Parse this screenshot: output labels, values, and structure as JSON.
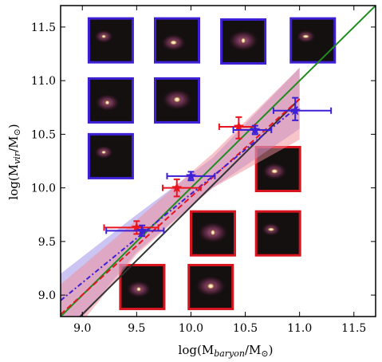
{
  "chart_data": {
    "type": "scatter",
    "title": "",
    "xlabel": {
      "main": "log(M",
      "sub": "baryon",
      "tail": "/M",
      "sun": "⊙",
      "close": ")"
    },
    "ylabel": {
      "main": "log(M",
      "sub": "vir",
      "tail": "/M",
      "sun": "⊙",
      "close": ")"
    },
    "xlim": [
      8.8,
      11.7
    ],
    "ylim": [
      8.8,
      11.7
    ],
    "xticks": [
      "9.0",
      "9.5",
      "10.0",
      "10.5",
      "11.0",
      "11.5"
    ],
    "yticks": [
      "9.0",
      "9.5",
      "10.0",
      "10.5",
      "11.0",
      "11.5"
    ],
    "grid": false,
    "colors": {
      "red": "#e8141e",
      "blue": "#3d1fd6",
      "green": "#1e8c1e",
      "black": "#333333",
      "red_band": "#f08a96",
      "blue_band": "#9a8ae6",
      "thumb_red": "#d8141e",
      "thumb_blue": "#3d1fd6"
    },
    "series": [
      {
        "color": "red",
        "marker": "star",
        "points": [
          {
            "x": 9.5,
            "y": 9.63,
            "xerr": [
              0.3,
              0.2
            ],
            "yerr": [
              0.06,
              0.06
            ]
          },
          {
            "x": 9.87,
            "y": 10.0,
            "xerr": [
              0.13,
              0.22
            ],
            "yerr": [
              0.08,
              0.08
            ]
          },
          {
            "x": 10.44,
            "y": 10.57,
            "xerr": [
              0.18,
              0.15
            ],
            "yerr": [
              0.11,
              0.09
            ]
          }
        ]
      },
      {
        "color": "blue",
        "marker": "star",
        "points": [
          {
            "x": 9.55,
            "y": 9.6,
            "xerr": [
              0.33,
              0.2
            ],
            "yerr": [
              0.05,
              0.05
            ]
          },
          {
            "x": 10.0,
            "y": 10.11,
            "xerr": [
              0.22,
              0.22
            ],
            "yerr": [
              0.04,
              0.04
            ]
          },
          {
            "x": 10.59,
            "y": 10.54,
            "xerr": [
              0.2,
              0.15
            ],
            "yerr": [
              0.04,
              0.04
            ]
          },
          {
            "x": 10.96,
            "y": 10.72,
            "xerr": [
              0.2,
              0.33
            ],
            "yerr": [
              0.09,
              0.12
            ]
          }
        ]
      }
    ],
    "lines": [
      {
        "style": "solid",
        "color": "green",
        "x": [
          8.8,
          11.7
        ],
        "y": [
          8.8,
          11.7
        ]
      },
      {
        "style": "solid",
        "color": "black",
        "x": [
          8.8,
          11.0
        ],
        "y": [
          8.62,
          10.83
        ]
      },
      {
        "style": "dashed",
        "color": "red",
        "x": [
          8.8,
          11.0
        ],
        "y": [
          8.82,
          10.83
        ]
      },
      {
        "style": "dotdash",
        "color": "blue",
        "x": [
          8.8,
          11.0
        ],
        "y": [
          8.95,
          10.77
        ]
      }
    ],
    "bands": [
      {
        "color": "blue_band",
        "x": [
          8.8,
          9.5,
          10.2,
          11.0
        ],
        "y_low": [
          8.55,
          9.4,
          10.0,
          10.55
        ],
        "y_high": [
          9.2,
          9.75,
          10.28,
          11.12
        ]
      },
      {
        "color": "red_band",
        "x": [
          8.8,
          9.5,
          10.2,
          11.0
        ],
        "y_low": [
          8.5,
          9.38,
          10.0,
          10.45
        ],
        "y_high": [
          9.1,
          9.7,
          10.32,
          11.12
        ]
      }
    ],
    "thumbnails": [
      {
        "border": "thumb_blue",
        "x0": 9.06,
        "y1": 11.58
      },
      {
        "border": "thumb_blue",
        "x0": 9.67,
        "y1": 11.58
      },
      {
        "border": "thumb_blue",
        "x0": 10.28,
        "y1": 11.57
      },
      {
        "border": "thumb_blue",
        "x0": 10.92,
        "y1": 11.58
      },
      {
        "border": "thumb_blue",
        "x0": 9.06,
        "y1": 11.02
      },
      {
        "border": "thumb_blue",
        "x0": 9.67,
        "y1": 11.02
      },
      {
        "border": "thumb_blue",
        "x0": 9.06,
        "y1": 10.5
      },
      {
        "border": "thumb_red",
        "x0": 10.6,
        "y1": 10.38
      },
      {
        "border": "thumb_red",
        "x0": 10.0,
        "y1": 9.78
      },
      {
        "border": "thumb_red",
        "x0": 10.6,
        "y1": 9.78
      },
      {
        "border": "thumb_red",
        "x0": 9.35,
        "y1": 9.28
      },
      {
        "border": "thumb_red",
        "x0": 9.98,
        "y1": 9.28
      }
    ]
  }
}
